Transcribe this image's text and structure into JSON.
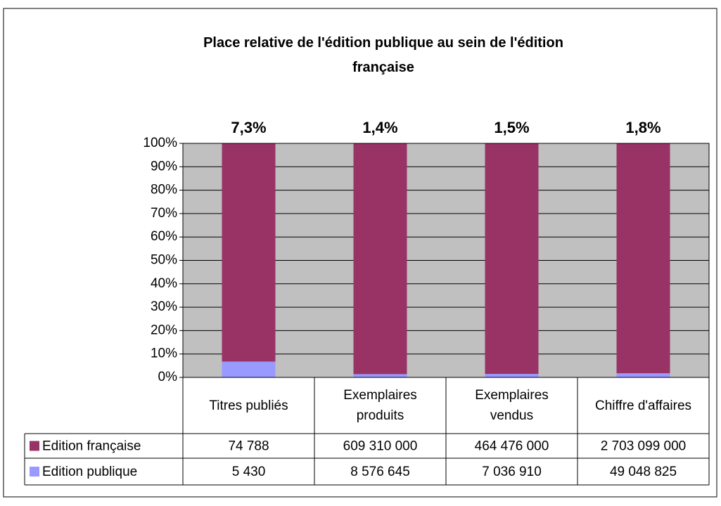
{
  "chart_data": {
    "type": "stacked_bar_100",
    "title": "Place relative de l'édition publique au sein de l'édition française",
    "categories": [
      "Titres publiés",
      "Exemplaires produits",
      "Exemplaires vendus",
      "Chiffre d'affaires"
    ],
    "annotations": [
      "7,3%",
      "1,4%",
      "1,5%",
      "1,8%"
    ],
    "series": [
      {
        "name": "Edition publique",
        "color": "#9999ff",
        "values": [
          5430,
          8576645,
          7036910,
          49048825
        ],
        "value_labels": [
          "5 430",
          "8 576 645",
          "7 036 910",
          "49 048 825"
        ]
      },
      {
        "name": "Edition française",
        "color": "#993366",
        "values": [
          74788,
          609310000,
          464476000,
          2703099000
        ],
        "value_labels": [
          "74 788",
          "609 310 000",
          "464 476 000",
          "2 703 099 000"
        ]
      }
    ],
    "ylim": [
      0,
      100
    ],
    "yticks": [
      {
        "value": 0,
        "label": "0%"
      },
      {
        "value": 10,
        "label": "10%"
      },
      {
        "value": 20,
        "label": "20%"
      },
      {
        "value": 30,
        "label": "30%"
      },
      {
        "value": 40,
        "label": "40%"
      },
      {
        "value": 50,
        "label": "50%"
      },
      {
        "value": 60,
        "label": "60%"
      },
      {
        "value": 70,
        "label": "70%"
      },
      {
        "value": 80,
        "label": "80%"
      },
      {
        "value": 90,
        "label": "90%"
      },
      {
        "value": 100,
        "label": "100%"
      }
    ],
    "grid": true,
    "plot_background": "#c0c0c0"
  }
}
